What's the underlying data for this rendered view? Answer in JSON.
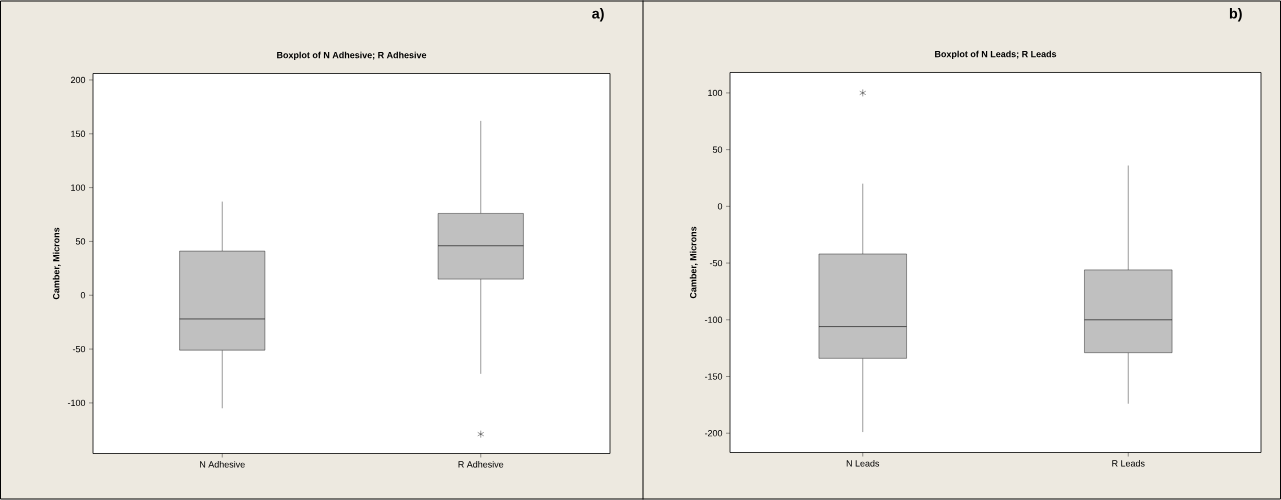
{
  "chart_data": [
    {
      "type": "box",
      "title": "Boxplot of N Adhesive; R Adhesive",
      "ylabel": "Camber, Microns",
      "categories": [
        "N Adhesive",
        "R Adhesive"
      ],
      "boxes": [
        {
          "low": -105,
          "q1": -51,
          "median": -22,
          "q3": 41,
          "high": 87
        },
        {
          "low": -73,
          "q1": 15,
          "median": 46,
          "q3": 76,
          "high": 162,
          "outliers": [
            -129
          ]
        }
      ],
      "color": "#c0c0c0",
      "ylim": [
        -147,
        206
      ],
      "yticks": [
        -100,
        -50,
        0,
        50,
        100,
        150,
        200
      ],
      "annotations": [
        "a)"
      ]
    },
    {
      "type": "box",
      "title": "Boxplot of N Leads; R Leads",
      "ylabel": "Camber, Microns",
      "categories": [
        "N Leads",
        "R Leads"
      ],
      "boxes": [
        {
          "low": -199,
          "q1": -134,
          "median": -106,
          "q3": -42,
          "high": 20,
          "outliers": [
            100
          ]
        },
        {
          "low": -174,
          "q1": -129,
          "median": -100,
          "q3": -56,
          "high": 36
        }
      ],
      "color": "#c0c0c0",
      "ylim": [
        -217,
        118
      ],
      "yticks": [
        -200,
        -150,
        -100,
        -50,
        0,
        50,
        100
      ],
      "annotations": [
        "b)"
      ]
    }
  ]
}
